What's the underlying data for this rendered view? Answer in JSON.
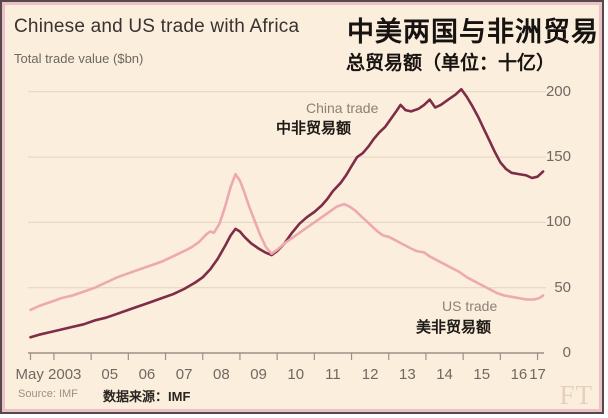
{
  "header": {
    "title_en": "Chinese and US trade with Africa",
    "title_zh": "中美两国与非洲贸易",
    "subtitle_en": "Total trade value ($bn)",
    "subtitle_zh": "总贸易额（单位：十亿）"
  },
  "footer": {
    "source_en": "Source: IMF",
    "source_zh": "数据来源：IMF",
    "logo": "FT"
  },
  "colors": {
    "background": "#fbeedd",
    "outer_border": "#55494e",
    "inner_border": "#edc0c5",
    "china_line": "#7f2c47",
    "us_line": "#ecaab0",
    "grid": "#e2d4c0",
    "axis": "#9a9186",
    "tick_text": "#6f6961"
  },
  "chart_data": {
    "type": "line",
    "title": "Chinese and US trade with Africa 中美两国与非洲贸易",
    "ylabel": "Total trade value ($bn) 总贸易额（单位：十亿）",
    "ylim": [
      0,
      200
    ],
    "yticks": [
      0,
      50,
      100,
      150,
      200
    ],
    "grid": "horizontal",
    "legend": "inline-labels",
    "x_axis": {
      "tick_years": [
        2004,
        2005,
        2006,
        2007,
        2008,
        2009,
        2010,
        2011,
        2012,
        2013,
        2014,
        2015,
        2016,
        2017
      ],
      "labels": [
        {
          "label": "May 2003",
          "year": 2003.37,
          "align": "start"
        },
        {
          "label": "05",
          "year": 2005.5
        },
        {
          "label": "06",
          "year": 2006.5
        },
        {
          "label": "07",
          "year": 2007.5
        },
        {
          "label": "08",
          "year": 2008.5
        },
        {
          "label": "09",
          "year": 2009.5
        },
        {
          "label": "10",
          "year": 2010.5
        },
        {
          "label": "11",
          "year": 2011.5
        },
        {
          "label": "12",
          "year": 2012.5
        },
        {
          "label": "13",
          "year": 2013.5
        },
        {
          "label": "14",
          "year": 2014.5
        },
        {
          "label": "15",
          "year": 2015.5
        },
        {
          "label": "16",
          "year": 2016.5
        },
        {
          "label": "17",
          "year": 2017.0
        }
      ]
    },
    "series": [
      {
        "name": "China trade",
        "name_zh": "中非贸易额",
        "color": "#7f2c47",
        "points": [
          [
            2003.37,
            12
          ],
          [
            2003.6,
            14
          ],
          [
            2003.9,
            16
          ],
          [
            2004.2,
            18
          ],
          [
            2004.5,
            20
          ],
          [
            2004.8,
            22
          ],
          [
            2005.1,
            25
          ],
          [
            2005.4,
            27
          ],
          [
            2005.7,
            30
          ],
          [
            2006.0,
            33
          ],
          [
            2006.3,
            36
          ],
          [
            2006.6,
            39
          ],
          [
            2006.9,
            42
          ],
          [
            2007.2,
            45
          ],
          [
            2007.5,
            49
          ],
          [
            2007.8,
            54
          ],
          [
            2008.0,
            58
          ],
          [
            2008.2,
            64
          ],
          [
            2008.4,
            72
          ],
          [
            2008.6,
            82
          ],
          [
            2008.75,
            90
          ],
          [
            2008.88,
            95
          ],
          [
            2009.0,
            93
          ],
          [
            2009.12,
            89
          ],
          [
            2009.3,
            84
          ],
          [
            2009.5,
            80
          ],
          [
            2009.68,
            77
          ],
          [
            2009.85,
            75
          ],
          [
            2010.0,
            78
          ],
          [
            2010.2,
            84
          ],
          [
            2010.4,
            92
          ],
          [
            2010.6,
            99
          ],
          [
            2010.8,
            104
          ],
          [
            2011.0,
            108
          ],
          [
            2011.2,
            113
          ],
          [
            2011.35,
            118
          ],
          [
            2011.5,
            124
          ],
          [
            2011.7,
            130
          ],
          [
            2011.85,
            136
          ],
          [
            2012.0,
            143
          ],
          [
            2012.15,
            150
          ],
          [
            2012.3,
            153
          ],
          [
            2012.45,
            158
          ],
          [
            2012.6,
            164
          ],
          [
            2012.75,
            169
          ],
          [
            2012.9,
            173
          ],
          [
            2013.05,
            179
          ],
          [
            2013.2,
            185
          ],
          [
            2013.32,
            190
          ],
          [
            2013.45,
            186
          ],
          [
            2013.6,
            185
          ],
          [
            2013.8,
            187
          ],
          [
            2013.95,
            190
          ],
          [
            2014.1,
            194
          ],
          [
            2014.25,
            188
          ],
          [
            2014.4,
            190
          ],
          [
            2014.6,
            194
          ],
          [
            2014.8,
            198
          ],
          [
            2014.95,
            202
          ],
          [
            2015.1,
            196
          ],
          [
            2015.25,
            189
          ],
          [
            2015.4,
            181
          ],
          [
            2015.55,
            172
          ],
          [
            2015.7,
            163
          ],
          [
            2015.85,
            154
          ],
          [
            2016.0,
            146
          ],
          [
            2016.15,
            141
          ],
          [
            2016.3,
            138
          ],
          [
            2016.5,
            137
          ],
          [
            2016.7,
            136
          ],
          [
            2016.85,
            134
          ],
          [
            2017.0,
            135
          ],
          [
            2017.15,
            139
          ]
        ]
      },
      {
        "name": "US trade",
        "name_zh": "美非贸易额",
        "color": "#ecaab0",
        "points": [
          [
            2003.37,
            33
          ],
          [
            2003.6,
            36
          ],
          [
            2003.9,
            39
          ],
          [
            2004.2,
            42
          ],
          [
            2004.5,
            44
          ],
          [
            2004.8,
            47
          ],
          [
            2005.1,
            50
          ],
          [
            2005.4,
            54
          ],
          [
            2005.7,
            58
          ],
          [
            2006.0,
            61
          ],
          [
            2006.3,
            64
          ],
          [
            2006.6,
            67
          ],
          [
            2006.9,
            70
          ],
          [
            2007.2,
            74
          ],
          [
            2007.5,
            78
          ],
          [
            2007.7,
            81
          ],
          [
            2007.9,
            85
          ],
          [
            2008.1,
            91
          ],
          [
            2008.2,
            93
          ],
          [
            2008.3,
            92
          ],
          [
            2008.45,
            99
          ],
          [
            2008.6,
            112
          ],
          [
            2008.75,
            127
          ],
          [
            2008.88,
            137
          ],
          [
            2009.0,
            132
          ],
          [
            2009.12,
            123
          ],
          [
            2009.25,
            112
          ],
          [
            2009.4,
            101
          ],
          [
            2009.55,
            90
          ],
          [
            2009.7,
            81
          ],
          [
            2009.85,
            76
          ],
          [
            2010.0,
            79
          ],
          [
            2010.2,
            84
          ],
          [
            2010.4,
            88
          ],
          [
            2010.6,
            92
          ],
          [
            2010.8,
            96
          ],
          [
            2011.0,
            100
          ],
          [
            2011.2,
            104
          ],
          [
            2011.4,
            108
          ],
          [
            2011.6,
            112
          ],
          [
            2011.8,
            114
          ],
          [
            2011.95,
            112
          ],
          [
            2012.1,
            109
          ],
          [
            2012.25,
            105
          ],
          [
            2012.4,
            101
          ],
          [
            2012.55,
            97
          ],
          [
            2012.7,
            93
          ],
          [
            2012.85,
            90
          ],
          [
            2013.0,
            89
          ],
          [
            2013.2,
            86
          ],
          [
            2013.4,
            83
          ],
          [
            2013.6,
            80
          ],
          [
            2013.75,
            78
          ],
          [
            2013.95,
            77
          ],
          [
            2014.1,
            74
          ],
          [
            2014.3,
            71
          ],
          [
            2014.5,
            68
          ],
          [
            2014.7,
            65
          ],
          [
            2014.9,
            62
          ],
          [
            2015.1,
            58
          ],
          [
            2015.3,
            55
          ],
          [
            2015.5,
            52
          ],
          [
            2015.7,
            49
          ],
          [
            2015.9,
            46
          ],
          [
            2016.1,
            44
          ],
          [
            2016.3,
            43
          ],
          [
            2016.5,
            42
          ],
          [
            2016.7,
            41
          ],
          [
            2016.9,
            41
          ],
          [
            2017.05,
            42
          ],
          [
            2017.15,
            44
          ]
        ]
      }
    ]
  }
}
